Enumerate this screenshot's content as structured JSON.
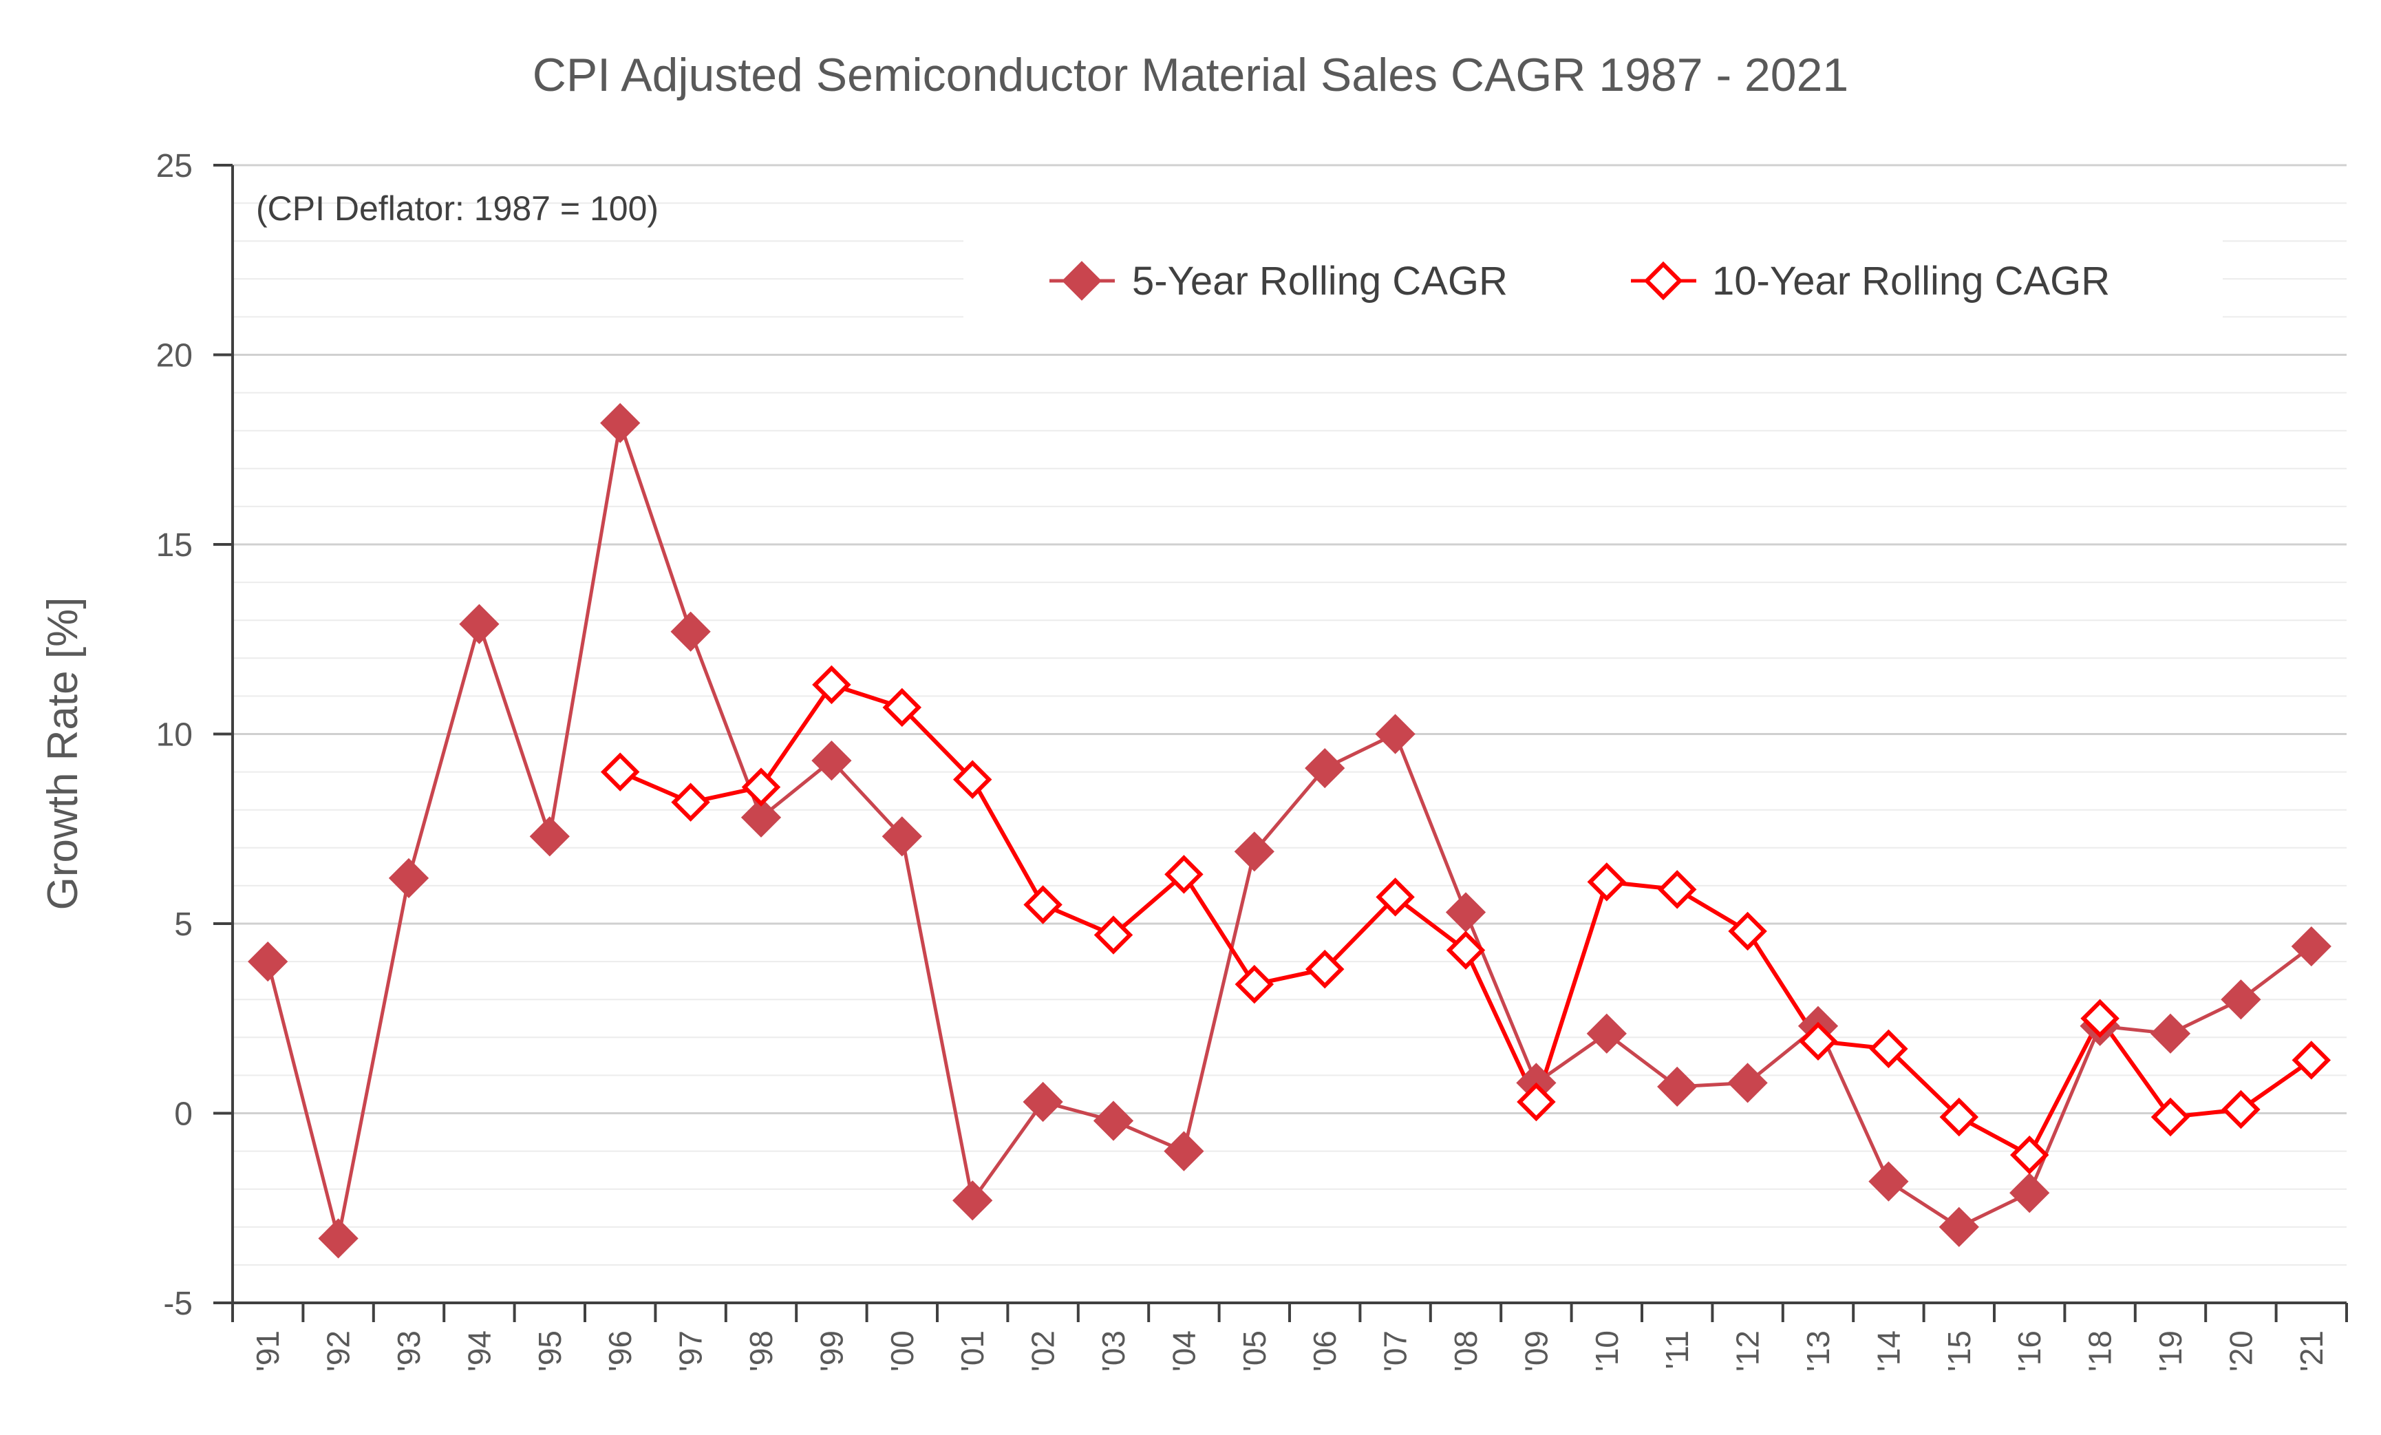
{
  "chart_data": {
    "type": "line",
    "title": "CPI Adjusted Semiconductor Material Sales CAGR 1987 - 2021",
    "annotation": "(CPI Deflator:  1987 = 100)",
    "xlabel": "",
    "ylabel": "Growth Rate [%]",
    "ylim": [
      -5,
      25
    ],
    "yticks": [
      "-5",
      "0",
      "5",
      "10",
      "15",
      "20",
      "25"
    ],
    "grid": true,
    "legend_position": "top-right",
    "categories": [
      "'91",
      "'92",
      "'93",
      "'94",
      "'95",
      "'96",
      "'97",
      "'98",
      "'99",
      "'00",
      "'01",
      "'02",
      "'03",
      "'04",
      "'05",
      "'06",
      "'07",
      "'08",
      "'09",
      "'10",
      "'11",
      "'12",
      "'13",
      "'14",
      "'15",
      "'16",
      "'18",
      "'19",
      "'20",
      "'21"
    ],
    "series": [
      {
        "name": "5-Year Rolling CAGR",
        "color": "#c9454e",
        "marker": "filled-diamond",
        "values": [
          4.0,
          -3.3,
          6.2,
          12.9,
          7.3,
          18.2,
          12.7,
          7.8,
          9.3,
          7.3,
          -2.3,
          0.3,
          -0.2,
          -1.0,
          6.9,
          9.1,
          10.0,
          5.3,
          0.8,
          2.1,
          0.7,
          0.8,
          2.3,
          -1.8,
          -3.0,
          -2.1,
          2.3,
          2.1,
          3.0,
          4.4
        ]
      },
      {
        "name": "10-Year Rolling CAGR",
        "color": "#ff0000",
        "marker": "open-diamond",
        "values": [
          null,
          null,
          null,
          null,
          null,
          9.0,
          8.2,
          8.6,
          11.3,
          10.7,
          8.8,
          5.5,
          4.7,
          6.3,
          3.4,
          3.8,
          5.7,
          4.3,
          0.3,
          6.1,
          5.9,
          4.8,
          1.9,
          1.7,
          -0.1,
          -1.1,
          2.5,
          -0.1,
          0.1,
          1.4
        ]
      }
    ]
  }
}
